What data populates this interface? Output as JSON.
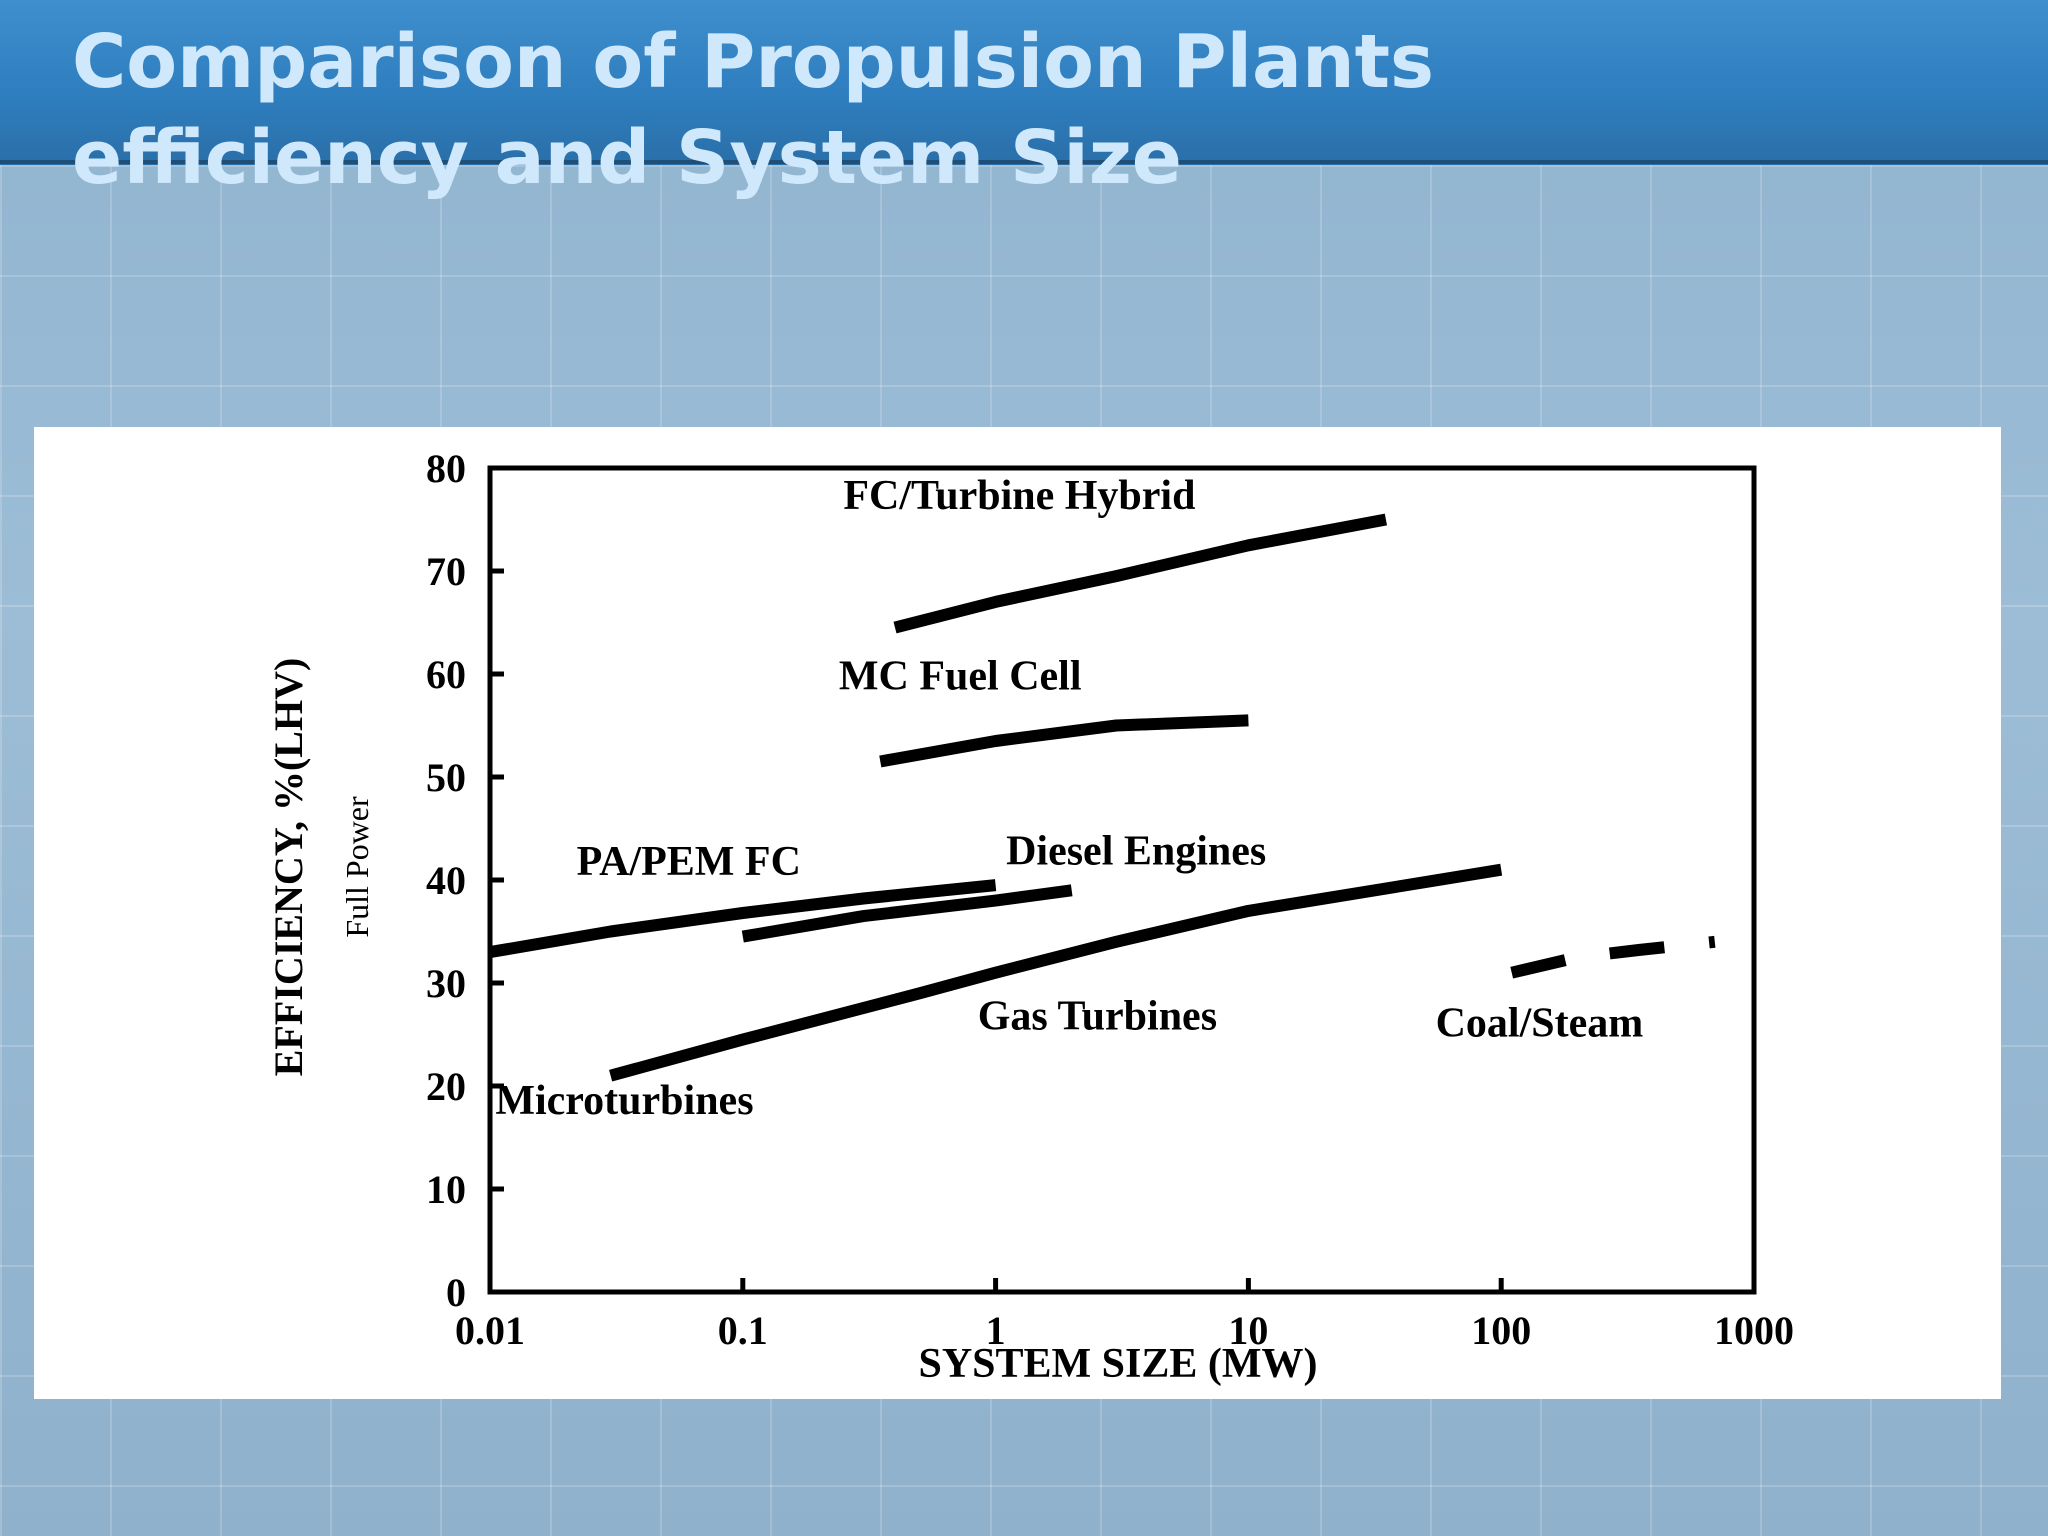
{
  "slide": {
    "title_line1": "Comparison of Propulsion Plants",
    "title_line2": "efficiency and System Size"
  },
  "chart_data": {
    "type": "line",
    "xlabel": "SYSTEM SIZE (MW)",
    "ylabel": "EFFICIENCY, %(LHV)",
    "ylabel2": "Full Power",
    "x_scale": "log",
    "xlim": [
      0.01,
      1000
    ],
    "ylim": [
      0,
      80
    ],
    "x_ticks": [
      "0.01",
      "0.1",
      "1",
      "10",
      "100",
      "1000"
    ],
    "x_tick_values": [
      0.01,
      0.1,
      1,
      10,
      100,
      1000
    ],
    "y_ticks": [
      "0",
      "10",
      "20",
      "30",
      "40",
      "50",
      "60",
      "70",
      "80"
    ],
    "y_tick_values": [
      0,
      10,
      20,
      30,
      40,
      50,
      60,
      70,
      80
    ],
    "grid": false,
    "legend": "none",
    "series": [
      {
        "name": "FC/Turbine Hybrid",
        "x": [
          0.4,
          1,
          3,
          10,
          35
        ],
        "y": [
          64.5,
          67,
          69.5,
          72.5,
          75
        ]
      },
      {
        "name": "MC Fuel Cell",
        "x": [
          0.35,
          1,
          3,
          10
        ],
        "y": [
          51.5,
          53.5,
          55,
          55.5
        ]
      },
      {
        "name": "PA/PEM FC",
        "x": [
          0.01,
          0.03,
          0.1,
          0.3,
          1
        ],
        "y": [
          33,
          35,
          36.8,
          38.2,
          39.5
        ]
      },
      {
        "name": "Diesel Engines",
        "x": [
          0.1,
          0.3,
          1,
          2
        ],
        "y": [
          34.5,
          36.5,
          38,
          39
        ]
      },
      {
        "name": "Gas Turbines",
        "x": [
          0.03,
          0.1,
          0.5,
          1,
          3,
          10,
          100
        ],
        "y": [
          21,
          24.5,
          29,
          31,
          34,
          37,
          41
        ]
      },
      {
        "name": "Coal/Steam",
        "x": [
          110,
          200,
          350,
          700
        ],
        "y": [
          31,
          32.5,
          33.2,
          34
        ],
        "dashed": true
      }
    ],
    "annotations": [
      {
        "text": "FC/Turbine Hybrid",
        "x": 0.25,
        "y": 76
      },
      {
        "text": "MC Fuel Cell",
        "x": 0.24,
        "y": 58.5
      },
      {
        "text": "PA/PEM FC",
        "x": 0.022,
        "y": 40.5
      },
      {
        "text": "Diesel Engines",
        "x": 1.1,
        "y": 41.5
      },
      {
        "text": "Gas Turbines",
        "x": 0.85,
        "y": 25.5
      },
      {
        "text": "Coal/Steam",
        "x": 55,
        "y": 24.8
      },
      {
        "text": "Microturbines",
        "x": 0.0105,
        "y": 17.3
      }
    ],
    "colors": {
      "line": "#000000",
      "background": "#ffffff"
    }
  }
}
